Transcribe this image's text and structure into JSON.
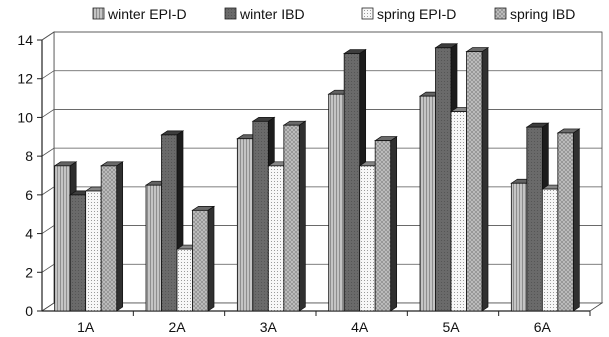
{
  "chart_data": {
    "type": "bar",
    "title": "",
    "xlabel": "",
    "ylabel": "",
    "ylim": [
      0,
      14
    ],
    "yticks": [
      0,
      2,
      4,
      6,
      8,
      10,
      12,
      14
    ],
    "grid": true,
    "legend_position": "top",
    "style": "3d-bars",
    "categories": [
      "1A",
      "2A",
      "3A",
      "4A",
      "5A",
      "6A"
    ],
    "series": [
      {
        "name": "winter EPI-D",
        "color": "#b4b4b4",
        "pattern": "vertical-lines",
        "values": [
          7.5,
          6.5,
          8.9,
          11.2,
          11.1,
          6.6
        ]
      },
      {
        "name": "winter IBD",
        "color": "#6e6e6e",
        "pattern": "solid-dark",
        "values": [
          6.0,
          9.1,
          9.8,
          13.3,
          13.6,
          9.5
        ]
      },
      {
        "name": "spring EPI-D",
        "color": "#f4f4f4",
        "pattern": "dots",
        "values": [
          6.2,
          3.2,
          7.5,
          7.5,
          10.3,
          6.3
        ]
      },
      {
        "name": "spring IBD",
        "color": "#c0c0c0",
        "pattern": "cross-hatch",
        "values": [
          7.5,
          5.2,
          9.6,
          8.8,
          13.4,
          9.2
        ]
      }
    ]
  }
}
